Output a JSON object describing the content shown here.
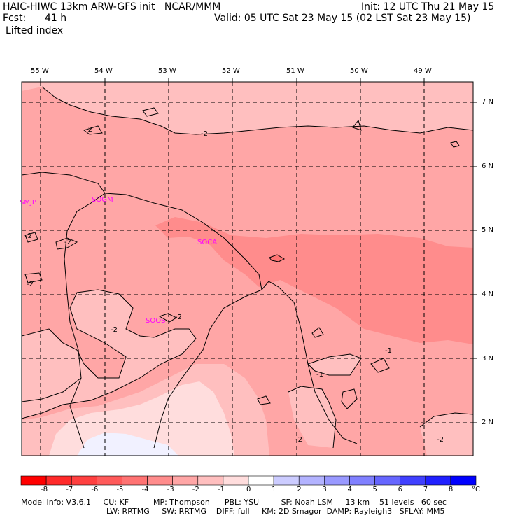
{
  "header": {
    "model_line": "HAIC-HIWC 13km ARW-GFS init   NCAR/MMM",
    "init": "Init: 12 UTC Thu 21 May 15",
    "fcst_label": "Fcst:",
    "fcst_value": "41 h",
    "valid": "Valid: 05 UTC Sat 23 May 15 (02 LST Sat 23 May 15)",
    "field": "Lifted index"
  },
  "map": {
    "longitudes": [
      "55 W",
      "54 W",
      "53 W",
      "52 W",
      "51 W",
      "50 W",
      "49 W"
    ],
    "latitudes": [
      "7 N",
      "6 N",
      "5 N",
      "4 N",
      "3 N",
      "2 N"
    ],
    "stations": [
      "SMJP",
      "SOGM",
      "SOCA",
      "SOOS"
    ],
    "contour_labels": [
      "-2",
      "-2",
      "-2",
      "-2",
      "-2",
      "-2",
      "-2",
      "-2",
      "-1",
      "-1",
      "-2"
    ]
  },
  "colorbar": {
    "labels": [
      "-8",
      "-7",
      "-6",
      "-5",
      "-4",
      "-3",
      "-2",
      "-1",
      "0",
      "1",
      "2",
      "3",
      "4",
      "5",
      "6",
      "7",
      "8"
    ],
    "unit": "°C",
    "colors": [
      "#ff0000",
      "#ff2a2a",
      "#ff4040",
      "#ff5a5a",
      "#ff7373",
      "#ff8c8c",
      "#ffa6a6",
      "#ffbfbf",
      "#ffdddd",
      "#ffffff",
      "#ccccff",
      "#b3b3ff",
      "#9999ff",
      "#8080ff",
      "#6666ff",
      "#4040ff",
      "#2020ff",
      "#0000ff"
    ]
  },
  "footer": {
    "line1": "Model Info: V3.6.1     CU: KF          MP: Thompson      PBL: YSU         SF: Noah LSM     13 km    51 levels   60 sec",
    "line2": "LW: RRTMG     SW: RRTMG    DIFF: full     KM: 2D Smagor  DAMP: Rayleigh3   SFLAY: MM5"
  }
}
